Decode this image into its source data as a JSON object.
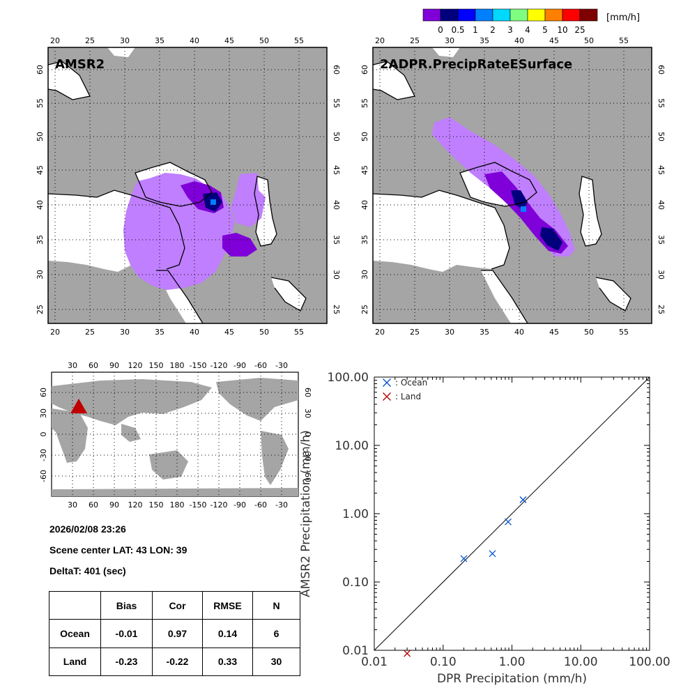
{
  "colorbar": {
    "unit_label": "[mm/h]",
    "tick_labels": [
      "0",
      "0.5",
      "1",
      "2",
      "3",
      "4",
      "5",
      "10",
      "25"
    ],
    "colors": [
      "#7f00d8",
      "#00007f",
      "#0000ff",
      "#007fff",
      "#00d8ff",
      "#7fff7f",
      "#ffff00",
      "#ff7f00",
      "#ff0000",
      "#7f0000"
    ]
  },
  "colors": {
    "land_gray": "#a5a5a5",
    "sea_white": "#ffffff",
    "precip_light": "#bf7fff",
    "precip_mid": "#7f00d8",
    "precip_dark": "#00007f",
    "ocean_marker": "#0050d0",
    "land_marker": "#b00000"
  },
  "maps": {
    "lon_ticks": [
      "20",
      "25",
      "30",
      "35",
      "40",
      "45",
      "50",
      "55"
    ],
    "lat_ticks": [
      "60",
      "55",
      "50",
      "45",
      "40",
      "35",
      "30",
      "25"
    ],
    "left_title": "AMSR2",
    "right_title": "2ADPR.PrecipRateESurface"
  },
  "globe": {
    "top_ticks": [
      "30",
      "60",
      "90",
      "120",
      "150",
      "180",
      "-150",
      "-120",
      "-90",
      "-60",
      "-30"
    ],
    "lat_ticks": [
      "60",
      "30",
      "0",
      "-30",
      "-60"
    ],
    "marker": "scene-center-triangle"
  },
  "info": {
    "datetime": "2026/02/08 23:26",
    "scene_center": "Scene center LAT: 43   LON:  39",
    "delta_t": "DeltaT:  401 (sec)"
  },
  "stats": {
    "headers": [
      "",
      "Bias",
      "Cor",
      "RMSE",
      "N"
    ],
    "rows": [
      [
        "Ocean",
        "-0.01",
        "0.97",
        "0.14",
        "6"
      ],
      [
        "Land",
        "-0.23",
        "-0.22",
        "0.33",
        "30"
      ]
    ]
  },
  "chart_data": {
    "type": "scatter",
    "xscale": "log",
    "yscale": "log",
    "xlim": [
      0.01,
      100
    ],
    "ylim": [
      0.01,
      100
    ],
    "xlabel": "DPR Precipitation (mm/h)",
    "ylabel": "AMSR2 Precipitation (mm/h)",
    "tick_labels": [
      "0.01",
      "0.10",
      "1.00",
      "10.00",
      "100.00"
    ],
    "tick_values": [
      0.01,
      0.1,
      1,
      10,
      100
    ],
    "reference_line": "1:1",
    "legend": {
      "position": "top-left",
      "marker": "x"
    },
    "series": [
      {
        "name": ": Ocean",
        "marker": "x",
        "x": [
          0.2,
          0.52,
          0.88,
          1.45
        ],
        "y": [
          0.22,
          0.26,
          0.76,
          1.6
        ]
      },
      {
        "name": ": Land",
        "marker": "x",
        "x": [
          0.03
        ],
        "y": [
          0.009
        ]
      }
    ]
  }
}
